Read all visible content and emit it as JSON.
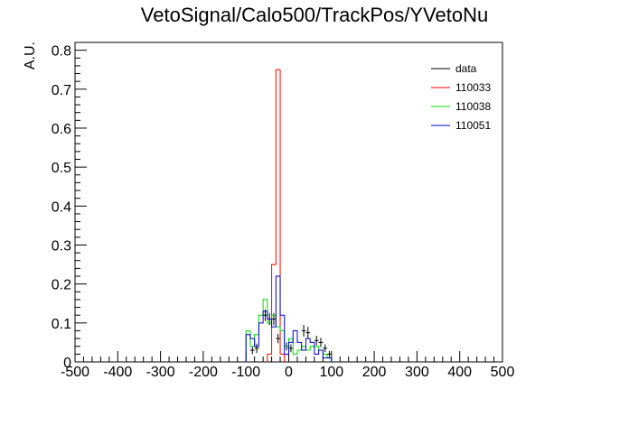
{
  "chart_data": {
    "type": "line",
    "title": "VetoSignal/Calo500/TrackPos/YVetoNu",
    "xlabel": "",
    "ylabel": "A.U.",
    "xlim": [
      -500,
      500
    ],
    "ylim": [
      0,
      0.82
    ],
    "x_ticks": [
      "-500",
      "-400",
      "-300",
      "-200",
      "-100",
      "0",
      "100",
      "200",
      "300",
      "400",
      "500"
    ],
    "y_ticks": [
      "0",
      "0.1",
      "0.2",
      "0.3",
      "0.4",
      "0.5",
      "0.6",
      "0.7",
      "0.8"
    ],
    "legend_position": "top-right",
    "bin_width": 10,
    "series": [
      {
        "name": "data",
        "color": "#000000",
        "style": "points",
        "points": [
          {
            "x": -85,
            "y": 0.03,
            "err": 0.01
          },
          {
            "x": -75,
            "y": 0.035,
            "err": 0.012
          },
          {
            "x": -55,
            "y": 0.12,
            "err": 0.015
          },
          {
            "x": -45,
            "y": 0.11,
            "err": 0.015
          },
          {
            "x": -35,
            "y": 0.11,
            "err": 0.015
          },
          {
            "x": -25,
            "y": 0.06,
            "err": 0.012
          },
          {
            "x": -5,
            "y": 0.04,
            "err": 0.01
          },
          {
            "x": 5,
            "y": 0.035,
            "err": 0.01
          },
          {
            "x": 35,
            "y": 0.08,
            "err": 0.015
          },
          {
            "x": 45,
            "y": 0.075,
            "err": 0.015
          },
          {
            "x": 65,
            "y": 0.055,
            "err": 0.012
          },
          {
            "x": 75,
            "y": 0.05,
            "err": 0.012
          },
          {
            "x": 85,
            "y": 0.035,
            "err": 0.01
          },
          {
            "x": 95,
            "y": 0.02,
            "err": 0.008
          }
        ]
      },
      {
        "name": "110033",
        "color": "#ff0000",
        "style": "step",
        "x": [
          -50,
          -40,
          -30,
          -20
        ],
        "values": [
          0.02,
          0.25,
          0.75,
          0.02
        ]
      },
      {
        "name": "110038",
        "color": "#00dd00",
        "style": "step",
        "x": [
          -100,
          -90,
          -80,
          -70,
          -60,
          -50,
          -40,
          -30,
          -20,
          -10,
          0,
          10,
          20,
          30,
          40,
          50,
          60,
          70,
          80,
          90
        ],
        "values": [
          0.08,
          0.04,
          0.07,
          0.12,
          0.16,
          0.1,
          0.12,
          0.09,
          0.08,
          0.04,
          0.06,
          0.02,
          0.03,
          0.04,
          0.03,
          0.04,
          0.04,
          0.03,
          0.02,
          0.01
        ]
      },
      {
        "name": "110051",
        "color": "#0000cc",
        "style": "step",
        "x": [
          -100,
          -90,
          -80,
          -70,
          -60,
          -50,
          -40,
          -30,
          -20,
          -10,
          0,
          10,
          20,
          30,
          40,
          50,
          60,
          70,
          80,
          90
        ],
        "values": [
          0.07,
          0.06,
          0.04,
          0.1,
          0.13,
          0.11,
          0.09,
          0.22,
          0.12,
          0.02,
          0.05,
          0.08,
          0.05,
          0.03,
          0.06,
          0.05,
          0.02,
          0.03,
          0.01,
          0.01
        ]
      }
    ]
  }
}
